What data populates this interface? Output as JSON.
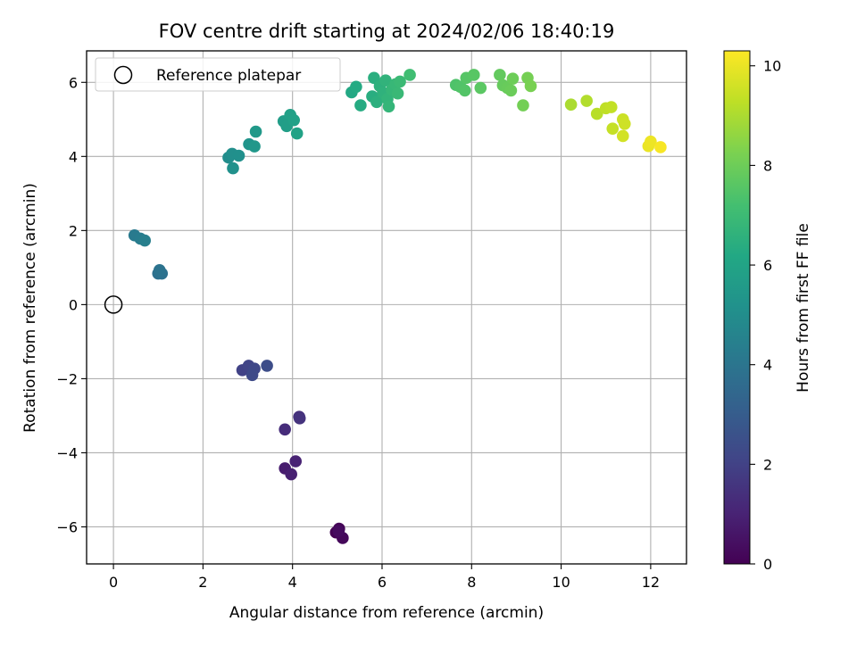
{
  "chart_data": {
    "type": "scatter",
    "title": "FOV centre drift starting at 2024/02/06 18:40:19",
    "xlabel": "Angular distance from reference (arcmin)",
    "ylabel": "Rotation from reference (arcmin)",
    "xlim": [
      -0.6,
      12.8
    ],
    "ylim": [
      -7.0,
      6.85
    ],
    "xticks": [
      0,
      2,
      4,
      6,
      8,
      10,
      12
    ],
    "yticks": [
      -6,
      -4,
      -2,
      0,
      2,
      4,
      6
    ],
    "grid": true,
    "colormap": "viridis",
    "colorbar": {
      "label": "Hours from first FF file",
      "range": [
        0,
        10.3
      ],
      "ticks": [
        0,
        2,
        4,
        6,
        8,
        10
      ]
    },
    "legend": {
      "placement": "upper-left",
      "entries": [
        "Reference platepar"
      ]
    },
    "reference_point": {
      "x": 0,
      "y": 0
    },
    "points": [
      [
        4.97,
        -6.15,
        0.0
      ],
      [
        5.04,
        -6.05,
        0.1
      ],
      [
        5.12,
        -6.3,
        0.2
      ],
      [
        5.03,
        -6.12,
        0.3
      ],
      [
        3.83,
        -4.42,
        0.8
      ],
      [
        3.97,
        -4.58,
        0.9
      ],
      [
        4.07,
        -4.23,
        1.0
      ],
      [
        3.83,
        -3.37,
        1.3
      ],
      [
        4.15,
        -3.03,
        1.4
      ],
      [
        4.16,
        -3.07,
        1.5
      ],
      [
        2.88,
        -1.77,
        2.0
      ],
      [
        3.02,
        -1.65,
        2.1
      ],
      [
        3.15,
        -1.73,
        2.2
      ],
      [
        3.1,
        -1.9,
        2.3
      ],
      [
        3.43,
        -1.65,
        2.4
      ],
      [
        1.0,
        0.84,
        3.8
      ],
      [
        1.08,
        0.84,
        3.85
      ],
      [
        1.03,
        0.93,
        3.9
      ],
      [
        0.47,
        1.87,
        4.2
      ],
      [
        0.6,
        1.78,
        4.3
      ],
      [
        0.7,
        1.73,
        4.4
      ],
      [
        2.57,
        3.97,
        5.0
      ],
      [
        2.65,
        4.07,
        5.05
      ],
      [
        2.8,
        4.02,
        5.1
      ],
      [
        2.67,
        3.68,
        5.15
      ],
      [
        3.03,
        4.33,
        5.3
      ],
      [
        3.15,
        4.27,
        5.4
      ],
      [
        3.18,
        4.67,
        5.5
      ],
      [
        3.8,
        4.95,
        5.7
      ],
      [
        3.87,
        4.82,
        5.75
      ],
      [
        3.95,
        5.12,
        5.8
      ],
      [
        4.03,
        4.98,
        5.85
      ],
      [
        4.1,
        4.62,
        5.9
      ],
      [
        5.32,
        5.73,
        6.2
      ],
      [
        5.42,
        5.88,
        6.25
      ],
      [
        5.52,
        5.38,
        6.3
      ],
      [
        5.78,
        5.62,
        6.4
      ],
      [
        5.82,
        6.12,
        6.45
      ],
      [
        5.88,
        5.47,
        6.5
      ],
      [
        5.95,
        5.9,
        6.55
      ],
      [
        6.02,
        5.72,
        6.6
      ],
      [
        6.08,
        6.05,
        6.65
      ],
      [
        6.12,
        5.55,
        6.7
      ],
      [
        6.15,
        5.35,
        6.75
      ],
      [
        6.22,
        5.8,
        6.8
      ],
      [
        6.3,
        5.95,
        6.85
      ],
      [
        6.35,
        5.7,
        6.9
      ],
      [
        6.4,
        6.02,
        6.95
      ],
      [
        6.62,
        6.2,
        7.1
      ],
      [
        7.65,
        5.93,
        7.4
      ],
      [
        7.75,
        5.88,
        7.45
      ],
      [
        7.85,
        5.78,
        7.5
      ],
      [
        7.88,
        6.12,
        7.55
      ],
      [
        8.05,
        6.2,
        7.6
      ],
      [
        8.2,
        5.85,
        7.65
      ],
      [
        8.63,
        6.2,
        7.8
      ],
      [
        8.7,
        5.92,
        7.85
      ],
      [
        8.8,
        5.85,
        7.9
      ],
      [
        8.88,
        5.78,
        7.95
      ],
      [
        8.92,
        6.1,
        8.0
      ],
      [
        9.15,
        5.38,
        8.1
      ],
      [
        9.25,
        6.12,
        8.15
      ],
      [
        9.32,
        5.9,
        8.2
      ],
      [
        10.22,
        5.4,
        9.0
      ],
      [
        10.57,
        5.5,
        9.1
      ],
      [
        10.8,
        5.15,
        9.2
      ],
      [
        11.0,
        5.3,
        9.3
      ],
      [
        11.12,
        5.33,
        9.35
      ],
      [
        11.15,
        4.75,
        9.4
      ],
      [
        11.38,
        5.0,
        9.5
      ],
      [
        11.42,
        4.88,
        9.55
      ],
      [
        11.38,
        4.55,
        9.6
      ],
      [
        11.95,
        4.28,
        10.0
      ],
      [
        12.0,
        4.4,
        10.05
      ],
      [
        12.22,
        4.25,
        10.2
      ]
    ]
  }
}
